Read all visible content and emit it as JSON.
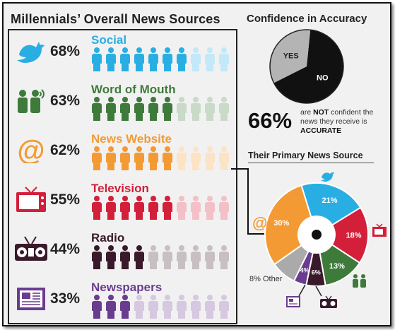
{
  "header": {
    "left_title": "Millennials’ Overall News Sources",
    "right_title": "Confidence in Accuracy"
  },
  "colors": {
    "social": "#29aee3",
    "word_of_mouth": "#3e7a3a",
    "news_website": "#f49a34",
    "television": "#d31f3a",
    "radio": "#3a1a2a",
    "newspapers": "#6a3c8f",
    "other": "#aaaaaa",
    "dark": "#111111",
    "muted_gray": "#b4b4b4"
  },
  "sources": [
    {
      "key": "social",
      "label": "Social",
      "pct_text": "68%",
      "icon": "twitter-bird-icon"
    },
    {
      "key": "word_of_mouth",
      "label": "Word of Mouth",
      "pct_text": "63%",
      "icon": "people-talking-icon"
    },
    {
      "key": "news_website",
      "label": "News Website",
      "pct_text": "62%",
      "icon": "at-sign-icon"
    },
    {
      "key": "television",
      "label": "Television",
      "pct_text": "55%",
      "icon": "television-icon"
    },
    {
      "key": "radio",
      "label": "Radio",
      "pct_text": "44%",
      "icon": "radio-icon"
    },
    {
      "key": "newspapers",
      "label": "Newspapers",
      "pct_text": "33%",
      "icon": "newspaper-icon"
    }
  ],
  "confidence": {
    "no_label": "NO",
    "yes_label": "YES",
    "big_pct": "66%",
    "text_part1": "are ",
    "text_not": "NOT",
    "text_part2": " confident the news they receive is ",
    "text_accurate": "ACCURATE"
  },
  "primary": {
    "title": "Their Primary News Source",
    "other_label": "8% Other"
  },
  "chart_data": [
    {
      "type": "bar",
      "title": "Millennials’ Overall News Sources",
      "categories": [
        "Social",
        "Word of Mouth",
        "News Website",
        "Television",
        "Radio",
        "Newspapers"
      ],
      "values": [
        68,
        63,
        62,
        55,
        44,
        33
      ],
      "unit": "%"
    },
    {
      "type": "pie",
      "title": "Confidence in Accuracy",
      "categories": [
        "NO",
        "YES"
      ],
      "values": [
        66,
        34
      ],
      "unit": "%"
    },
    {
      "type": "pie",
      "title": "Their Primary News Source",
      "categories": [
        "Social",
        "Television",
        "Word of Mouth",
        "Radio",
        "Newspapers",
        "Other",
        "News Website"
      ],
      "values": [
        21,
        18,
        13,
        6,
        4,
        8,
        30
      ],
      "labels": [
        "21%",
        "18%",
        "13%",
        "6%",
        "4%",
        "",
        "30%"
      ],
      "unit": "%"
    }
  ]
}
